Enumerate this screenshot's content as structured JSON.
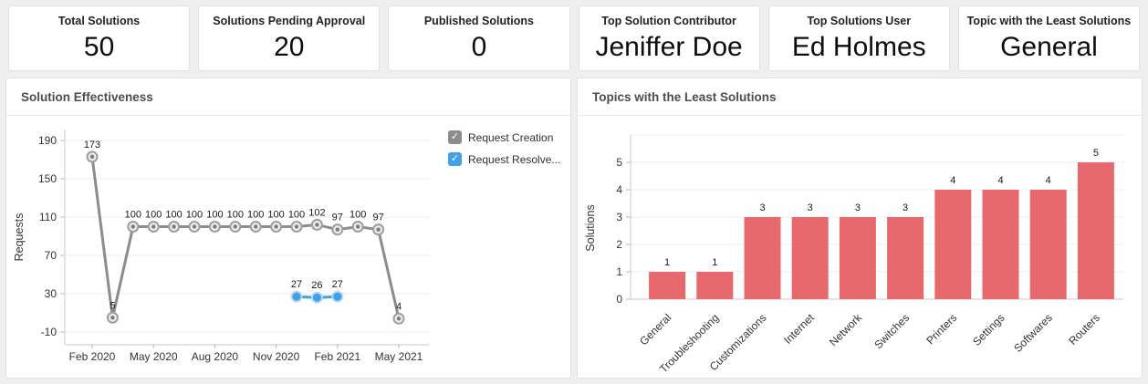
{
  "cards": [
    {
      "label": "Total Solutions",
      "value": "50"
    },
    {
      "label": "Solutions Pending Approval",
      "value": "20"
    },
    {
      "label": "Published Solutions",
      "value": "0"
    },
    {
      "label": "Top Solution Contributor",
      "value": "Jeniffer Doe"
    },
    {
      "label": "Top Solutions User",
      "value": "Ed Holmes"
    },
    {
      "label": "Topic with the Least Solutions",
      "value": "General"
    }
  ],
  "panels": {
    "line_title": "Solution Effectiveness",
    "bar_title": "Topics with the Least Solutions"
  },
  "legend": {
    "check_glyph": "✓"
  },
  "colors": {
    "page_bg": "#efefef",
    "panel_bg": "#ffffff",
    "grid": "#ececec",
    "axis": "#c9c9c9",
    "gray_series": "#8c8c8c",
    "blue_series": "#42a0e6",
    "bar": "#e8696d"
  },
  "chart_data": [
    {
      "type": "line",
      "title": "Solution Effectiveness",
      "xlabel": "",
      "ylabel": "Requests",
      "ylim": [
        -10,
        190
      ],
      "yticks": [
        190,
        150,
        110,
        70,
        30,
        -10
      ],
      "grid": "horizontal",
      "legend_position": "right",
      "x": [
        "Feb 2020",
        "Mar 2020",
        "Apr 2020",
        "May 2020",
        "Jun 2020",
        "Jul 2020",
        "Aug 2020",
        "Sep 2020",
        "Oct 2020",
        "Nov 2020",
        "Dec 2020",
        "Jan 2021",
        "Feb 2021",
        "Mar 2021",
        "Apr 2021",
        "May 2021"
      ],
      "x_tick_labels": [
        "Feb 2020",
        "May 2020",
        "Aug 2020",
        "Nov 2020",
        "Feb 2021",
        "May 2021"
      ],
      "x_tick_indices": [
        0,
        3,
        6,
        9,
        12,
        15
      ],
      "series": [
        {
          "name": "Request Creation",
          "color": "#8c8c8c",
          "marker": {
            "ring": "#9e9e9e",
            "fill": "#ececec",
            "dot": "#7c7c7c"
          },
          "values": [
            173,
            5,
            100,
            100,
            100,
            100,
            100,
            100,
            100,
            100,
            100,
            102,
            97,
            100,
            97,
            4
          ]
        },
        {
          "name": "Request Resolve...",
          "color": "#42a0e6",
          "marker": {
            "ring": "#b3d8f5",
            "fill": "#42a0e6",
            "dot": "#42a0e6"
          },
          "values": [
            null,
            null,
            null,
            null,
            null,
            null,
            null,
            null,
            null,
            null,
            27,
            26,
            27,
            null,
            null,
            null
          ]
        }
      ]
    },
    {
      "type": "bar",
      "title": "Topics with the Least Solutions",
      "xlabel": "",
      "ylabel": "Solutions",
      "ylim": [
        0,
        6
      ],
      "yticks": [
        0,
        1,
        2,
        3,
        4,
        5
      ],
      "grid": "horizontal",
      "bar_color": "#e8696d",
      "categories": [
        "General",
        "Troubleshooting",
        "Customizations",
        "Internet",
        "Network",
        "Switches",
        "Printers",
        "Settings",
        "Softwares",
        "Routers"
      ],
      "values": [
        1,
        1,
        3,
        3,
        3,
        3,
        4,
        4,
        4,
        5
      ]
    }
  ]
}
